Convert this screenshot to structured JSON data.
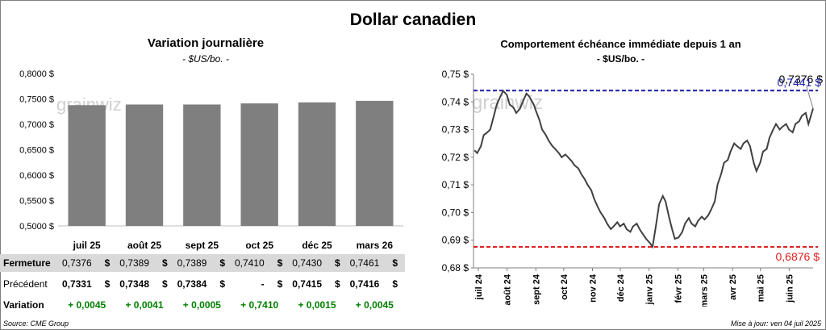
{
  "page": {
    "title": "Dollar canadien",
    "source": "Source: CME Group",
    "updated": "Mise à jour: ven 04 juil 2025",
    "watermark": "grainwiz"
  },
  "left_chart": {
    "title": "Variation  journalière",
    "subtitle": "- $US/bo. -"
  },
  "right_chart": {
    "title": "Comportement échéance immédiate depuis 1 an",
    "subtitle": "- $US/bo. -",
    "last_label": "0,7376 $",
    "high_label": "0,7441 $",
    "low_label": "0,6876 $"
  },
  "table": {
    "rows": [
      {
        "label": "Fermeture",
        "values": [
          "0,7376",
          "0,7389",
          "0,7389",
          "0,7410",
          "0,7430",
          "0,7461"
        ],
        "unit": "$"
      },
      {
        "label": "Précédent",
        "values": [
          "0,7331",
          "0,7348",
          "0,7384",
          "-",
          "0,7415",
          "0,7416"
        ],
        "unit": "$"
      },
      {
        "label": "Variation",
        "values": [
          "+ 0,0045",
          "+ 0,0041",
          "+ 0,0005",
          "+ 0,7410",
          "+ 0,0015",
          "+ 0,0045"
        ]
      }
    ]
  },
  "colors": {
    "bar": "#7f7f7f",
    "line": "#404040",
    "high_line": "#1f1fa8",
    "low_line": "#e02020",
    "positive": "#008000",
    "band": "#d9d9d9"
  },
  "chart_data": [
    {
      "type": "bar",
      "title": "Variation  journalière",
      "subtitle": "- $US/bo. -",
      "categories": [
        "juil 25",
        "août 25",
        "sept 25",
        "oct 25",
        "déc 25",
        "mars 26"
      ],
      "values": [
        0.7376,
        0.7389,
        0.7389,
        0.741,
        0.743,
        0.7461
      ],
      "ylim": [
        0.5,
        0.8
      ],
      "yticks": [
        "0,5000 $",
        "0,5500 $",
        "0,6000 $",
        "0,6500 $",
        "0,7000 $",
        "0,7500 $",
        "0,8000 $"
      ],
      "grid": false
    },
    {
      "type": "line",
      "title": "Comportement échéance immédiate depuis 1 an",
      "subtitle": "- $US/bo. -",
      "ylim": [
        0.68,
        0.75
      ],
      "yticks": [
        "0,68 $",
        "0,69 $",
        "0,70 $",
        "0,71 $",
        "0,72 $",
        "0,73 $",
        "0,74 $",
        "0,75 $"
      ],
      "x_ticks": [
        "juil 24",
        "août 24",
        "sept 24",
        "oct 24",
        "nov 24",
        "déc 24",
        "janv 25",
        "févr 25",
        "mars 25",
        "avr 25",
        "mai 25",
        "juin 25"
      ],
      "reference_lines": [
        {
          "value": 0.7441,
          "label": "0,7441 $"
        },
        {
          "value": 0.6876,
          "label": "0,6876 $"
        }
      ],
      "series": [
        {
          "x": [
            "2024-07-02",
            "2024-07-05",
            "2024-07-09",
            "2024-07-12",
            "2024-07-16",
            "2024-07-19",
            "2024-07-23",
            "2024-07-26",
            "2024-07-30",
            "2024-08-02",
            "2024-08-06",
            "2024-08-09",
            "2024-08-13",
            "2024-08-16",
            "2024-08-20",
            "2024-08-23",
            "2024-08-27",
            "2024-08-30",
            "2024-09-04",
            "2024-09-06",
            "2024-09-10",
            "2024-09-13",
            "2024-09-17",
            "2024-09-20",
            "2024-09-24",
            "2024-09-27",
            "2024-10-01",
            "2024-10-04",
            "2024-10-08",
            "2024-10-11",
            "2024-10-15",
            "2024-10-18",
            "2024-10-22",
            "2024-10-25",
            "2024-10-29",
            "2024-11-01",
            "2024-11-05",
            "2024-11-08",
            "2024-11-12",
            "2024-11-15",
            "2024-11-19",
            "2024-11-22",
            "2024-11-26",
            "2024-11-29",
            "2024-12-03",
            "2024-12-06",
            "2024-12-10",
            "2024-12-13",
            "2024-12-17",
            "2024-12-20",
            "2024-12-24",
            "2024-12-27",
            "2024-12-31",
            "2025-01-03",
            "2025-01-07",
            "2025-01-10",
            "2025-01-14",
            "2025-01-17",
            "2025-01-21",
            "2025-01-24",
            "2025-01-28",
            "2025-01-31",
            "2025-02-03",
            "2025-02-07",
            "2025-02-11",
            "2025-02-14",
            "2025-02-18",
            "2025-02-21",
            "2025-02-25",
            "2025-02-28",
            "2025-03-04",
            "2025-03-07",
            "2025-03-11",
            "2025-03-14",
            "2025-03-18",
            "2025-03-21",
            "2025-03-25",
            "2025-03-28",
            "2025-04-01",
            "2025-04-04",
            "2025-04-08",
            "2025-04-11",
            "2025-04-15",
            "2025-04-18",
            "2025-04-22",
            "2025-04-25",
            "2025-04-29",
            "2025-05-02",
            "2025-05-06",
            "2025-05-09",
            "2025-05-13",
            "2025-05-16",
            "2025-05-20",
            "2025-05-23",
            "2025-05-27",
            "2025-05-30",
            "2025-06-03",
            "2025-06-06",
            "2025-06-10",
            "2025-06-13",
            "2025-06-17",
            "2025-06-20",
            "2025-06-24",
            "2025-06-27",
            "2025-07-02"
          ],
          "values": [
            0.7225,
            0.7215,
            0.724,
            0.728,
            0.729,
            0.73,
            0.735,
            0.739,
            0.742,
            0.744,
            0.7425,
            0.739,
            0.738,
            0.736,
            0.7375,
            0.74,
            0.743,
            0.742,
            0.739,
            0.737,
            0.7335,
            0.73,
            0.728,
            0.726,
            0.724,
            0.723,
            0.7215,
            0.72,
            0.721,
            0.72,
            0.7185,
            0.717,
            0.716,
            0.714,
            0.712,
            0.71,
            0.708,
            0.705,
            0.702,
            0.7,
            0.698,
            0.696,
            0.694,
            0.695,
            0.6965,
            0.695,
            0.696,
            0.694,
            0.693,
            0.695,
            0.696,
            0.694,
            0.692,
            0.6905,
            0.689,
            0.6876,
            0.696,
            0.703,
            0.706,
            0.704,
            0.698,
            0.694,
            0.6905,
            0.691,
            0.693,
            0.696,
            0.698,
            0.696,
            0.695,
            0.697,
            0.6985,
            0.6975,
            0.699,
            0.701,
            0.704,
            0.71,
            0.714,
            0.718,
            0.719,
            0.722,
            0.725,
            0.724,
            0.723,
            0.725,
            0.726,
            0.724,
            0.718,
            0.715,
            0.718,
            0.722,
            0.723,
            0.727,
            0.73,
            0.732,
            0.73,
            0.731,
            0.732,
            0.73,
            0.729,
            0.732,
            0.733,
            0.735,
            0.736,
            0.732,
            0.7376
          ]
        }
      ]
    }
  ]
}
